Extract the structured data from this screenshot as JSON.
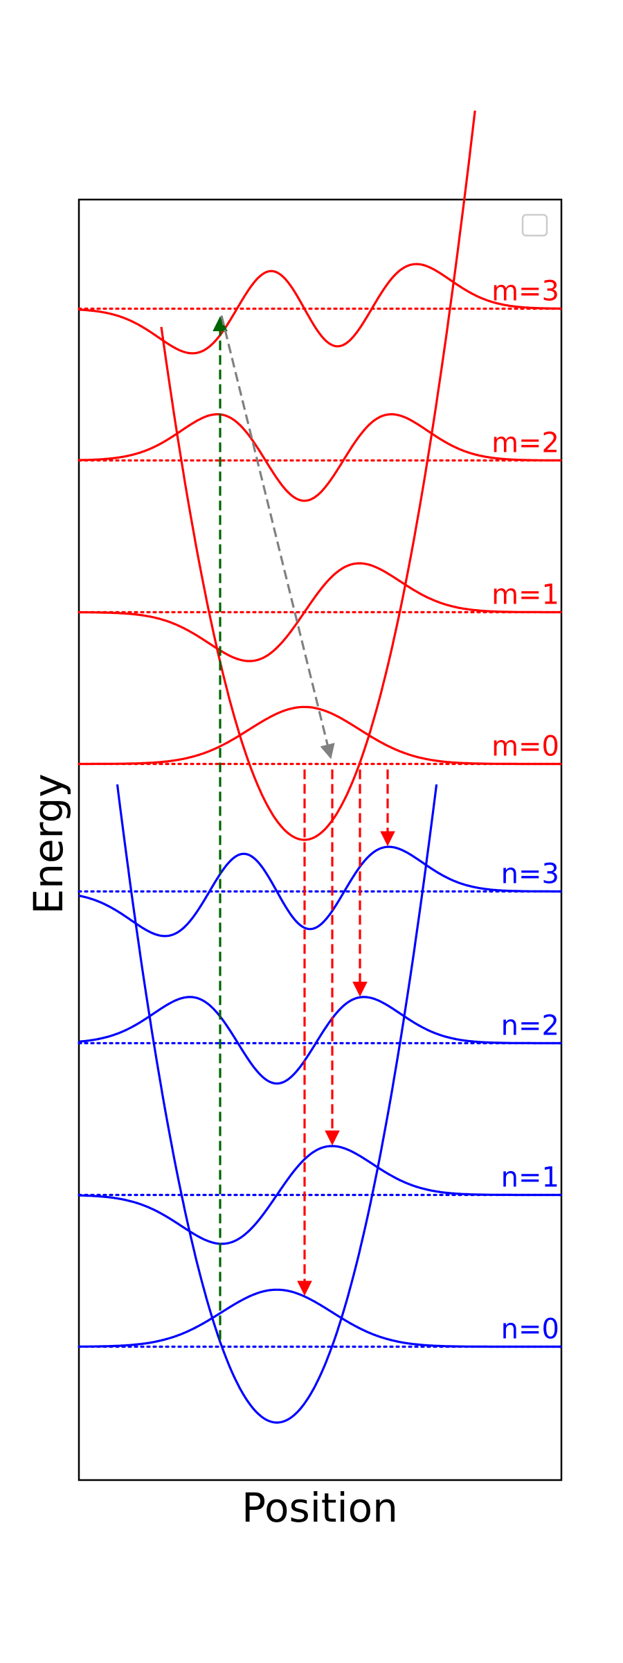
{
  "axes": {
    "xlabel": "Position",
    "ylabel": "Energy"
  },
  "colors": {
    "excited": "#ff0000",
    "ground": "#0000ff",
    "absorption": "#006400",
    "relaxation": "#808080",
    "emission": "#ff0000",
    "frame": "#000000"
  },
  "legend": {
    "placement": "top-right",
    "entries": []
  },
  "excited_state": {
    "levels": [
      {
        "label": "m=0",
        "n": 0
      },
      {
        "label": "m=1",
        "n": 1
      },
      {
        "label": "m=2",
        "n": 2
      },
      {
        "label": "m=3",
        "n": 3
      }
    ]
  },
  "ground_state": {
    "levels": [
      {
        "label": "n=0",
        "n": 0
      },
      {
        "label": "n=1",
        "n": 1
      },
      {
        "label": "n=2",
        "n": 2
      },
      {
        "label": "n=3",
        "n": 3
      }
    ]
  },
  "transitions": {
    "absorption": {
      "from": "n=0",
      "to": "m=3"
    },
    "relaxation": {
      "from": "m=3",
      "to": "m=0"
    },
    "emissions": [
      {
        "from": "m=0",
        "to": "n=0"
      },
      {
        "from": "m=0",
        "to": "n=1"
      },
      {
        "from": "m=0",
        "to": "n=2"
      },
      {
        "from": "m=0",
        "to": "n=3"
      }
    ]
  }
}
